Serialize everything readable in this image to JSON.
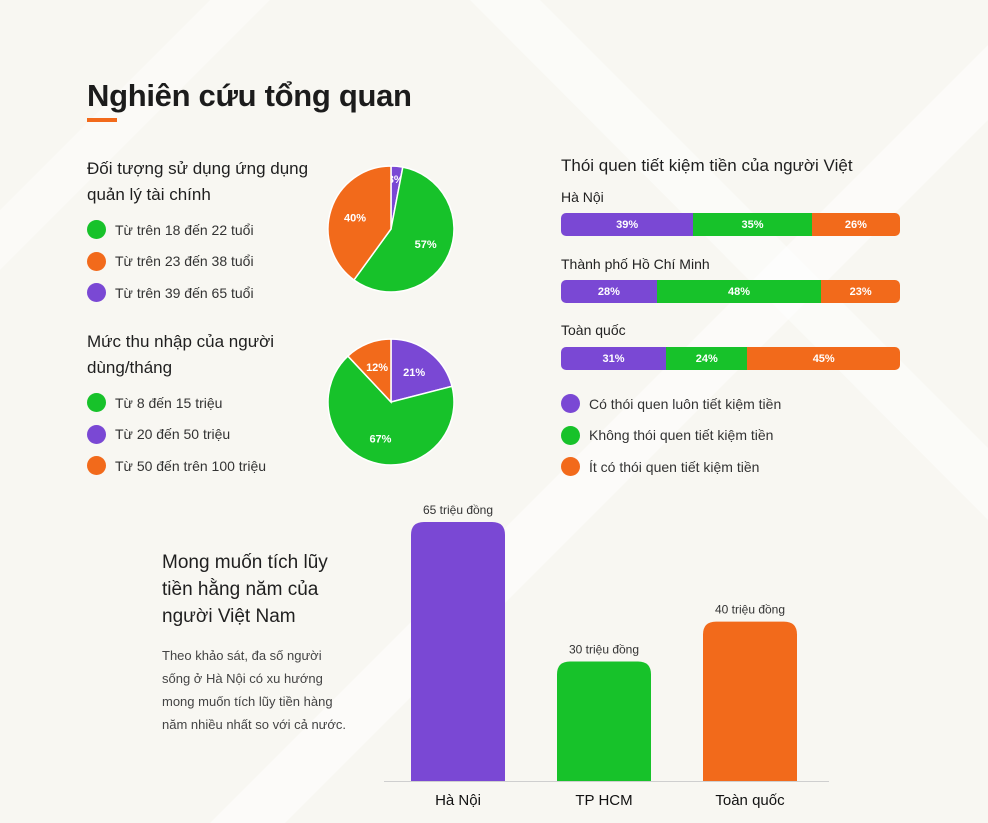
{
  "title": "Nghiên cứu tổng quan",
  "colors": {
    "purple": "#7a48d4",
    "green": "#17c22a",
    "orange": "#f26a1b"
  },
  "chart_data": [
    {
      "type": "pie",
      "title": "Đối tượng sử dụng ứng dụng quản lý tài chính",
      "legend": [
        "Từ trên 18 đến 22 tuổi",
        "Từ trên 23 đến 38 tuổi",
        "Từ trên 39 đến 65 tuổi"
      ],
      "slices": [
        {
          "name": "Từ trên 39 đến 65 tuổi",
          "value": 3,
          "label": "3%",
          "color": "#7a48d4"
        },
        {
          "name": "Từ trên 18 đến 22 tuổi",
          "value": 57,
          "label": "57%",
          "color": "#17c22a"
        },
        {
          "name": "Từ trên 23 đến 38 tuổi",
          "value": 40,
          "label": "40%",
          "color": "#f26a1b"
        }
      ]
    },
    {
      "type": "pie",
      "title": "Mức thu nhập của người dùng/tháng",
      "legend": [
        "Từ 8 đến 15 triệu",
        "Từ 20 đến 50 triệu",
        "Từ 50 đến trên 100 triệu"
      ],
      "slices": [
        {
          "name": "Từ 20 đến 50 triệu",
          "value": 21,
          "label": "21%",
          "color": "#7a48d4"
        },
        {
          "name": "Từ 8 đến 15 triệu",
          "value": 67,
          "label": "67%",
          "color": "#17c22a"
        },
        {
          "name": "Từ 50 đến trên 100 triệu",
          "value": 12,
          "label": "12%",
          "color": "#f26a1b"
        }
      ]
    },
    {
      "type": "bar",
      "stacked": true,
      "orientation": "horizontal",
      "title": "Thói quen tiết kiệm tiền của người Việt",
      "categories": [
        "Hà Nội",
        "Thành phố Hồ Chí Minh",
        "Toàn quốc"
      ],
      "series": [
        {
          "name": "Có thói quen luôn tiết kiệm tiền",
          "color": "#7a48d4",
          "values": [
            39,
            28,
            31
          ],
          "labels": [
            "39%",
            "28%",
            "31%"
          ]
        },
        {
          "name": "Không thói quen tiết kiệm tiền",
          "color": "#17c22a",
          "values": [
            35,
            48,
            24
          ],
          "labels": [
            "35%",
            "48%",
            "24%"
          ]
        },
        {
          "name": "Ít có thói quen tiết kiệm tiền",
          "color": "#f26a1b",
          "values": [
            26,
            23,
            45
          ],
          "labels": [
            "26%",
            "23%",
            "45%"
          ]
        }
      ]
    },
    {
      "type": "bar",
      "title": "Mong muốn tích lũy tiền hằng năm của người Việt Nam",
      "description": "Theo khảo sát, đa số người sống ở Hà Nội có xu hướng mong muốn tích lũy tiền hàng năm nhiều nhất so với cả nước.",
      "categories": [
        "Hà Nội",
        "TP HCM",
        "Toàn quốc"
      ],
      "values": [
        65,
        30,
        40
      ],
      "value_labels": [
        "65 triệu đồng",
        "30 triệu đồng",
        "40 triệu đồng"
      ],
      "colors": [
        "#7a48d4",
        "#17c22a",
        "#f26a1b"
      ],
      "ylim": [
        0,
        65
      ]
    }
  ]
}
